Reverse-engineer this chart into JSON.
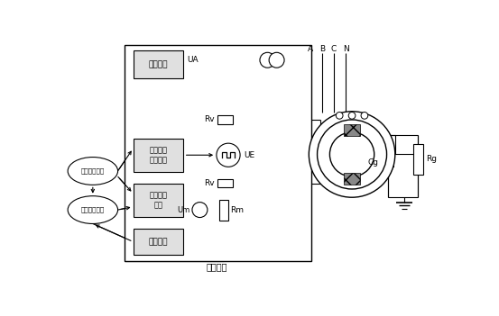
{
  "bg_color": "#ffffff",
  "line_color": "#000000",
  "fig_width": 5.53,
  "fig_height": 3.51,
  "dpi": 100,
  "labels": {
    "ce_pin_module": "测频模块",
    "fangbo_module": "方波极性\n切换模块",
    "caiyangji_module": "采样计算\n模块",
    "lubo_module": "录波模块",
    "zhengding_module": "整定周期定值",
    "rengo_module": "人工分析波形",
    "UE_label": "UE",
    "UA_label": "UA",
    "Um_label": "Um",
    "Rm_label": "Rm",
    "Rv_top_label": "Rv",
    "Rv_bot_label": "Rv",
    "Cg_label": "Cg",
    "Rg_label": "Rg",
    "A_label": "A",
    "B_label": "B",
    "C_label": "C",
    "N_label": "N",
    "baohu_label": "保护装置"
  }
}
